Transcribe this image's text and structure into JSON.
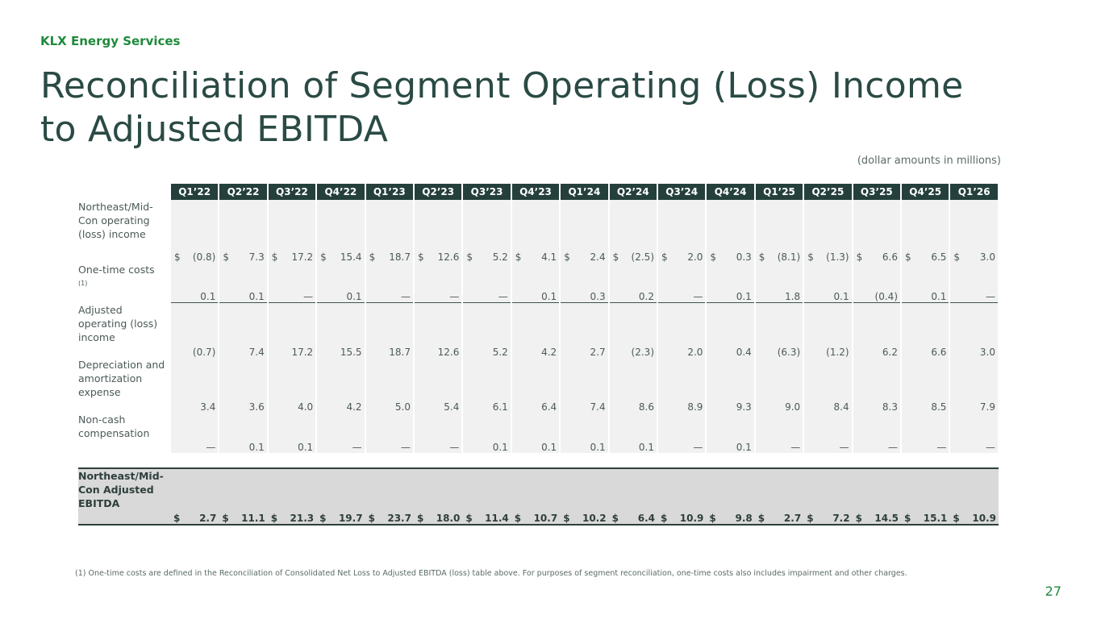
{
  "brand": "KLX Energy Services",
  "title": {
    "line1": "Reconciliation of Segment Operating (Loss) Income",
    "line2": "to Adjusted EBITDA"
  },
  "units_note": "(dollar amounts in millions)",
  "table": {
    "quarters": [
      "Q1’22",
      "Q2’22",
      "Q3’22",
      "Q4’22",
      "Q1’23",
      "Q2’23",
      "Q3’23",
      "Q4’23",
      "Q1’24",
      "Q2’24",
      "Q3’24",
      "Q4’24",
      "Q1’25",
      "Q2’25",
      "Q3’25",
      "Q4’25",
      "Q1’26"
    ],
    "rows": [
      {
        "label": "Northeast/Mid-Con operating (loss) income",
        "currency": "$",
        "values": [
          "(0.8)",
          "7.3",
          "17.2",
          "15.4",
          "18.7",
          "12.6",
          "5.2",
          "4.1",
          "2.4",
          "(2.5)",
          "2.0",
          "0.3",
          "(8.1)",
          "(1.3)",
          "6.6",
          "6.5",
          "3.0"
        ]
      },
      {
        "label": "One-time costs",
        "footnote_mark": "(1)",
        "currency": "",
        "values": [
          "0.1",
          "0.1",
          "—",
          "0.1",
          "—",
          "—",
          "—",
          "0.1",
          "0.3",
          "0.2",
          "—",
          "0.1",
          "1.8",
          "0.1",
          "(0.4)",
          "0.1",
          "—"
        ]
      },
      {
        "label": "Adjusted operating (loss) income",
        "currency": "",
        "values": [
          "(0.7)",
          "7.4",
          "17.2",
          "15.5",
          "18.7",
          "12.6",
          "5.2",
          "4.2",
          "2.7",
          "(2.3)",
          "2.0",
          "0.4",
          "(6.3)",
          "(1.2)",
          "6.2",
          "6.6",
          "3.0"
        ]
      },
      {
        "label": "Depreciation and amortization expense",
        "currency": "",
        "values": [
          "3.4",
          "3.6",
          "4.0",
          "4.2",
          "5.0",
          "5.4",
          "6.1",
          "6.4",
          "7.4",
          "8.6",
          "8.9",
          "9.3",
          "9.0",
          "8.4",
          "8.3",
          "8.5",
          "7.9"
        ]
      },
      {
        "label": "Non-cash compensation",
        "currency": "",
        "values": [
          "—",
          "0.1",
          "0.1",
          "—",
          "—",
          "—",
          "0.1",
          "0.1",
          "0.1",
          "0.1",
          "—",
          "0.1",
          "—",
          "—",
          "—",
          "—",
          "—"
        ]
      }
    ],
    "total": {
      "label": "Northeast/Mid-Con Adjusted EBITDA",
      "currency": "$",
      "values": [
        "2.7",
        "11.1",
        "21.3",
        "19.7",
        "23.7",
        "18.0",
        "11.4",
        "10.7",
        "10.2",
        "6.4",
        "10.9",
        "9.8",
        "2.7",
        "7.2",
        "14.5",
        "15.1",
        "10.9"
      ]
    }
  },
  "footnote": "(1) One-time costs are defined in the Reconciliation of Consolidated Net Loss to Adjusted EBITDA (loss) table above. For purposes of segment reconciliation, one-time costs also includes impairment and other charges.",
  "page_number": "27"
}
